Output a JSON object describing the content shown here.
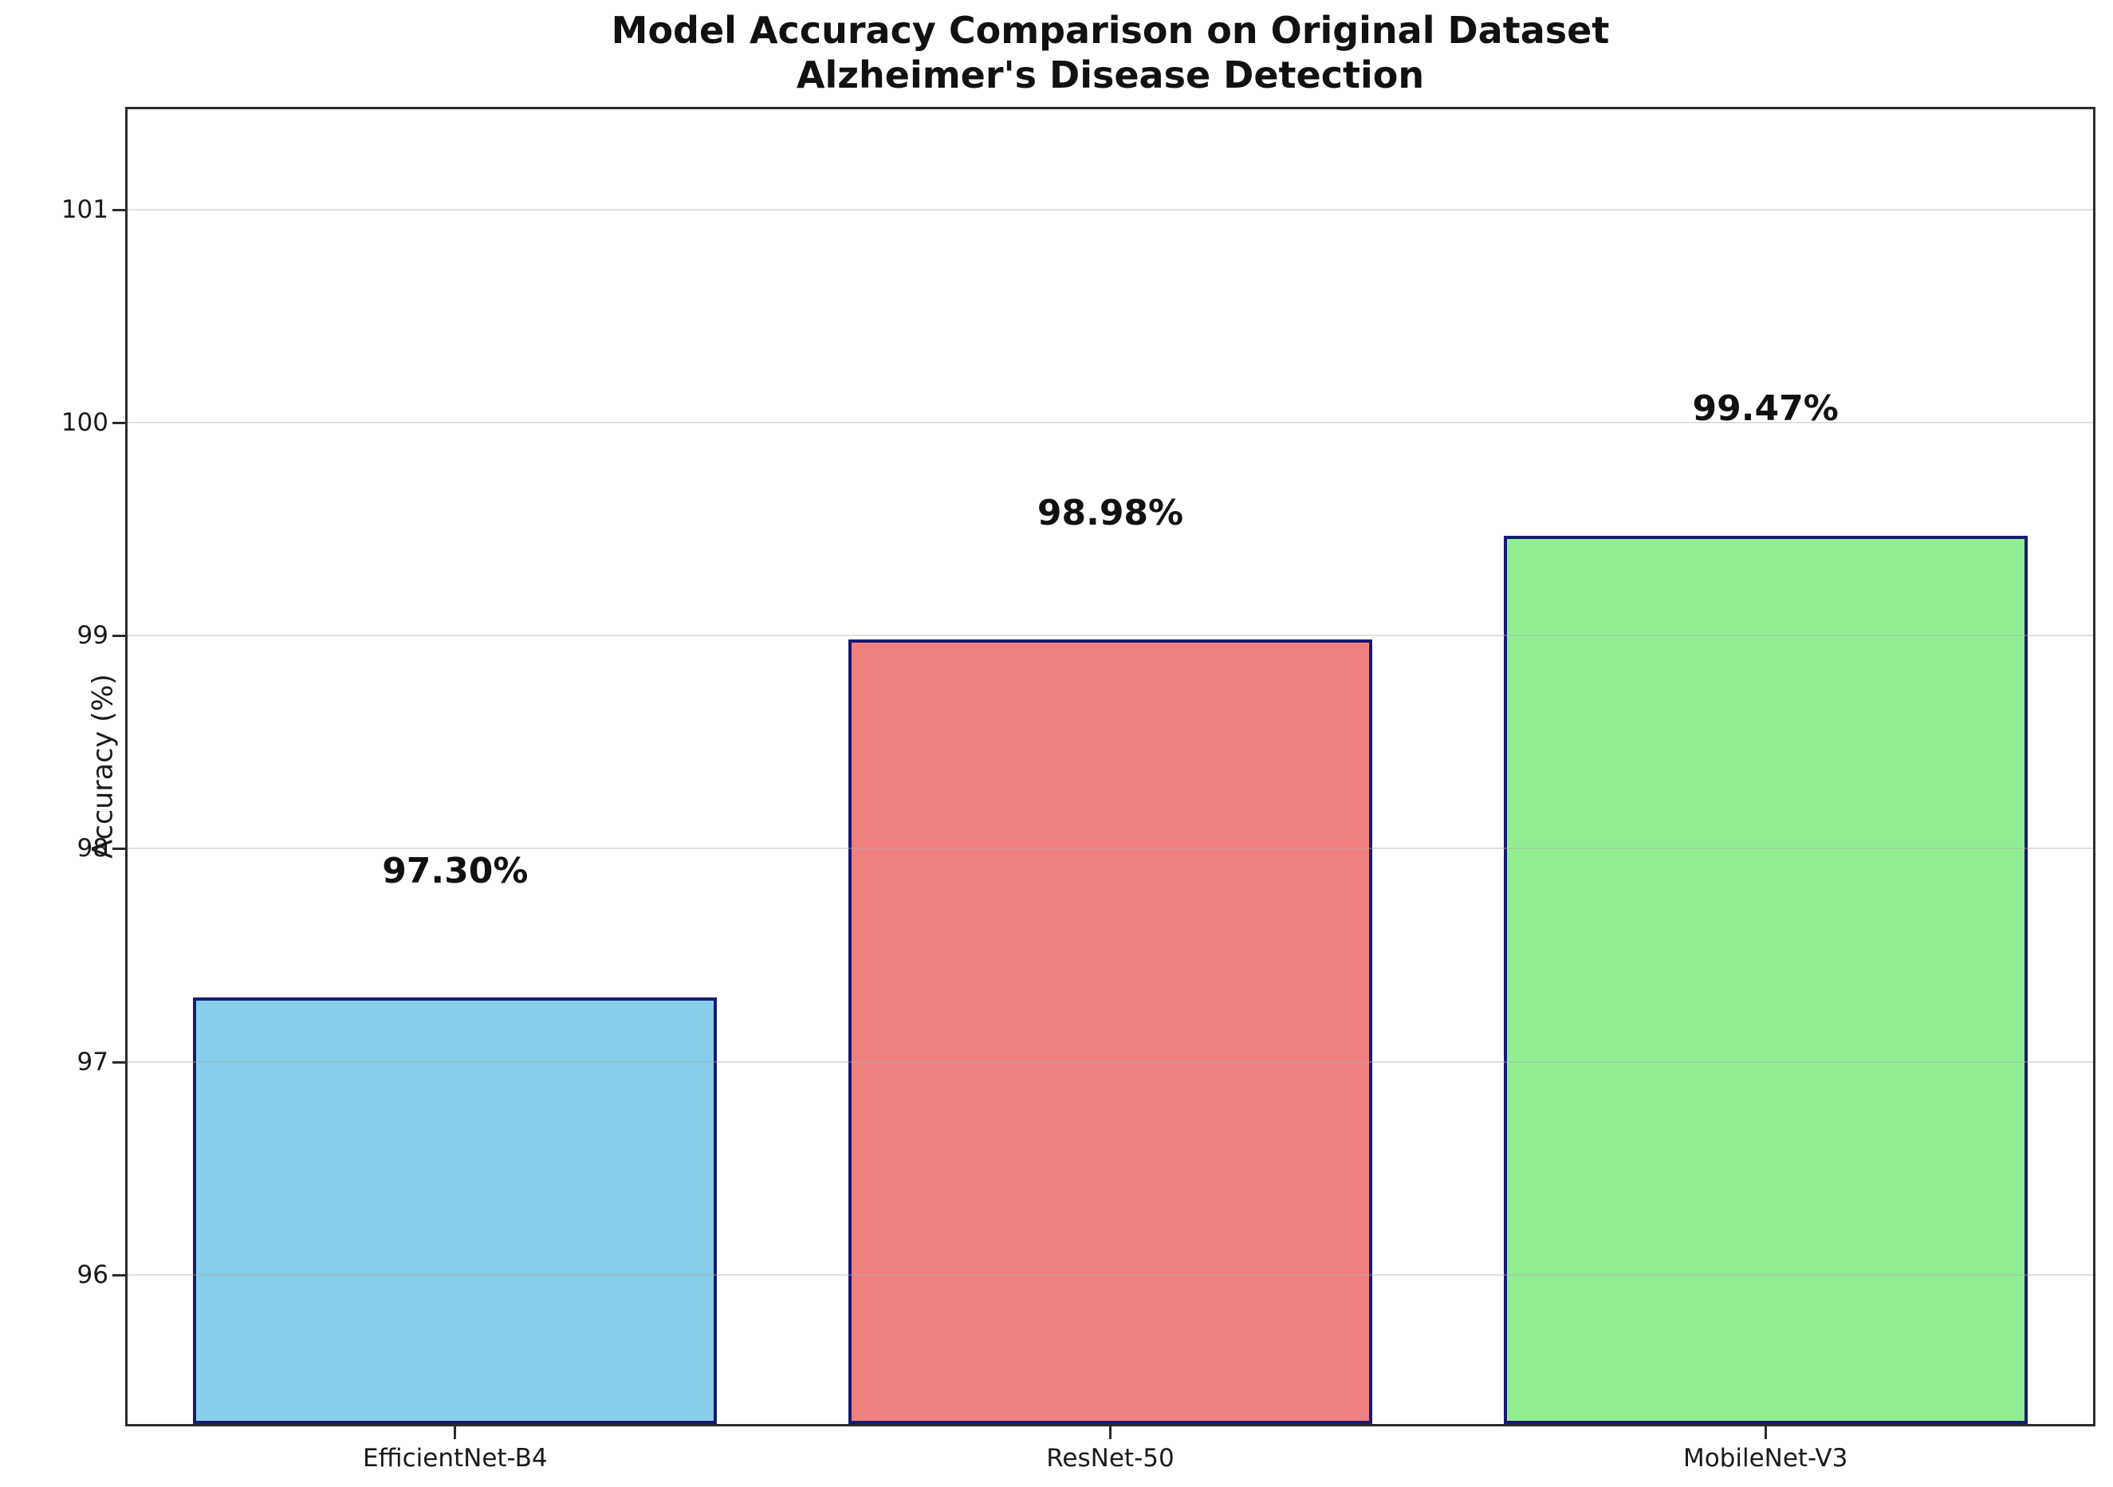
{
  "chart": {
    "title_line1": "Model Accuracy Comparison on Original Dataset",
    "title_line2": "Alzheimer's Disease Detection",
    "ylabel": "Accuracy (%)"
  },
  "chart_data": {
    "type": "bar",
    "title": "Model Accuracy Comparison on Original Dataset",
    "subtitle": "Alzheimer's Disease Detection",
    "xlabel": "",
    "ylabel": "Accuracy (%)",
    "categories": [
      "EfficientNet-B4",
      "ResNet-50",
      "MobileNet-V3"
    ],
    "values": [
      97.3,
      98.98,
      99.47
    ],
    "value_labels": [
      "97.30%",
      "98.98%",
      "99.47%"
    ],
    "bar_colors": [
      "#87CEEB",
      "#F08080",
      "#90EE90"
    ],
    "bar_edge_color": "#191970",
    "bar_width_fraction": 0.8,
    "ylim": [
      95.3,
      101.47
    ],
    "yticks": [
      96,
      97,
      98,
      99,
      100,
      101
    ],
    "grid": true,
    "legend": false,
    "label_offset_units": 0.5
  },
  "colors": {
    "background": "#ffffff",
    "spine": "#2b2b2b",
    "grid": "rgba(174,174,174,0.38)",
    "text": "#1a1a1a"
  }
}
